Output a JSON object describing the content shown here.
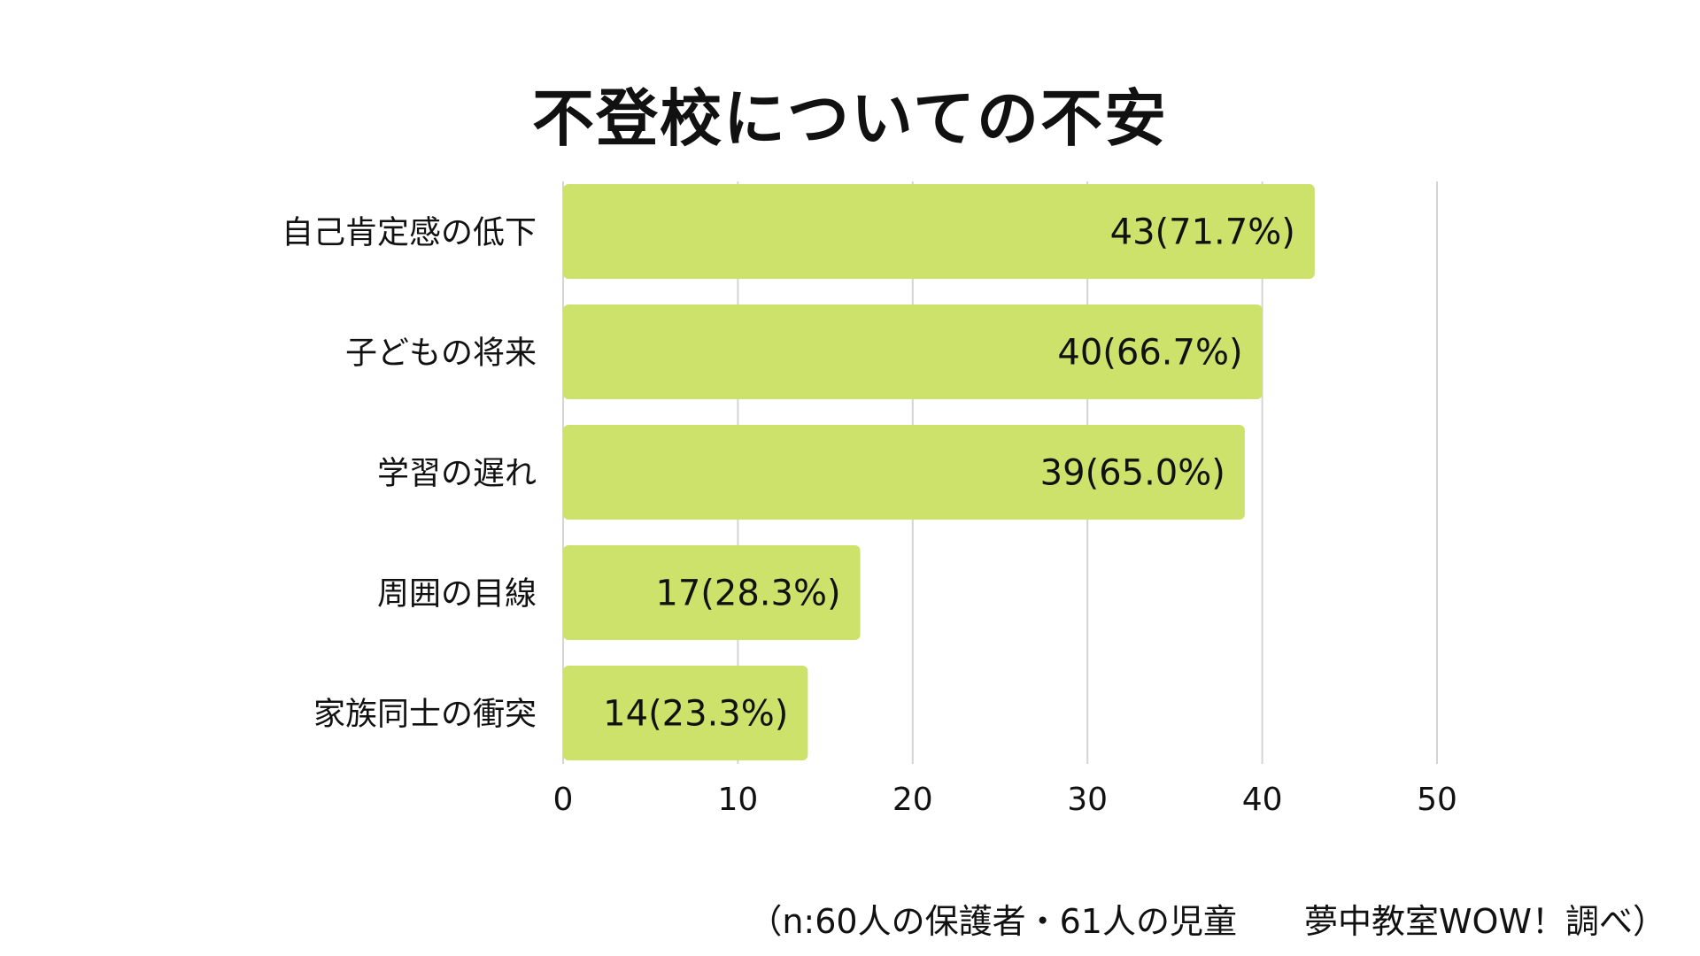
{
  "chart_data": {
    "type": "bar",
    "orientation": "horizontal",
    "title": "不登校についての不安",
    "categories": [
      "自己肯定感の低下",
      "子どもの将来",
      "学習の遅れ",
      "周囲の目線",
      "家族同士の衝突"
    ],
    "values": [
      43,
      40,
      39,
      17,
      14
    ],
    "value_labels": [
      "43(71.7%)",
      "40(66.7%)",
      "39(65.0%)",
      "17(28.3%)",
      "14(23.3%)"
    ],
    "xticks": [
      "0",
      "10",
      "20",
      "30",
      "40",
      "50"
    ],
    "xlim": [
      0,
      50
    ],
    "xlabel": "",
    "ylabel": "",
    "grid": true,
    "legend": "none",
    "bar_color": "#cce26a",
    "grid_color": "#d4d4d4"
  },
  "footnote": "（n:60人の保護者・61人の児童　　夢中教室WOW！調べ）"
}
